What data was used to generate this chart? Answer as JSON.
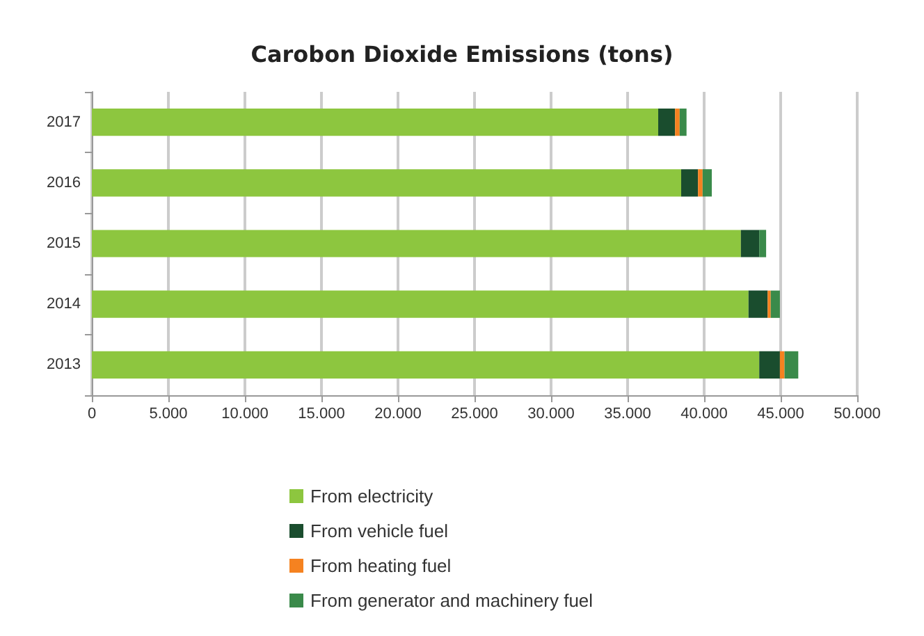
{
  "chart_data": {
    "type": "bar",
    "orientation": "horizontal",
    "stacked": true,
    "title": "Carobon Dioxide Emissions (tons)",
    "categories": [
      "2017",
      "2016",
      "2015",
      "2014",
      "2013"
    ],
    "series": [
      {
        "name": "From electricity",
        "color": "#8dc63f",
        "values": [
          37000,
          38500,
          42400,
          42900,
          43600
        ]
      },
      {
        "name": "From vehicle fuel",
        "color": "#1a4d2e",
        "values": [
          1100,
          1100,
          1200,
          1250,
          1350
        ]
      },
      {
        "name": "From heating fuel",
        "color": "#f58220",
        "values": [
          300,
          300,
          0,
          200,
          300
        ]
      },
      {
        "name": "From generator and machinery fuel",
        "color": "#3a8a4a",
        "values": [
          450,
          600,
          450,
          600,
          900
        ]
      }
    ],
    "xlim": [
      0,
      50000
    ],
    "xticks": [
      {
        "value": 0,
        "label": "0"
      },
      {
        "value": 5000,
        "label": "5.000"
      },
      {
        "value": 10000,
        "label": "10.000"
      },
      {
        "value": 15000,
        "label": "15.000"
      },
      {
        "value": 20000,
        "label": "20.000"
      },
      {
        "value": 25000,
        "label": "25.000"
      },
      {
        "value": 30000,
        "label": "30.000"
      },
      {
        "value": 35000,
        "label": "35.000"
      },
      {
        "value": 40000,
        "label": "40.000"
      },
      {
        "value": 45000,
        "label": "45.000"
      },
      {
        "value": 50000,
        "label": "50.000"
      }
    ],
    "grid": "x",
    "legend": "bottom"
  }
}
